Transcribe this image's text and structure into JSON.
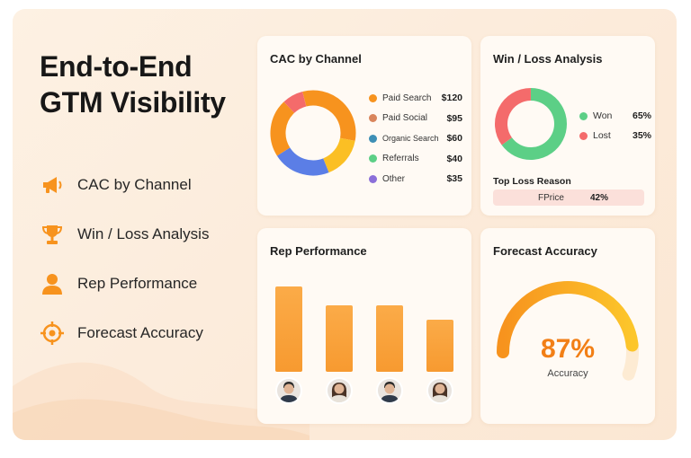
{
  "hero": {
    "title_line1": "End-to-End",
    "title_line2": "GTM Visibility"
  },
  "features": [
    {
      "label": "CAC by Channel",
      "icon": "megaphone-icon"
    },
    {
      "label": "Win / Loss Analysis",
      "icon": "trophy-icon"
    },
    {
      "label": "Rep Performance",
      "icon": "person-icon"
    },
    {
      "label": "Forecast Accuracy",
      "icon": "target-icon"
    }
  ],
  "cac": {
    "title": "CAC by Channel",
    "channels": [
      {
        "name": "Paid Search",
        "value": "$120",
        "color": "#f7931e"
      },
      {
        "name": "Paid Social",
        "value": "$95",
        "color": "#d9855c"
      },
      {
        "name": "Organic Search",
        "value": "$60",
        "color": "#3d8fb5"
      },
      {
        "name": "Referrals",
        "value": "$40",
        "color": "#5ccf86"
      },
      {
        "name": "Other",
        "value": "$35",
        "color": "#8b6fd9"
      }
    ],
    "donut_segments": [
      {
        "value": 32,
        "color": "#f7931e"
      },
      {
        "value": 16,
        "color": "#fbbf24"
      },
      {
        "value": 22,
        "color": "#5b7ee6"
      },
      {
        "value": 22,
        "color": "#f7931e"
      },
      {
        "value": 8,
        "color": "#f46b6b"
      }
    ]
  },
  "winloss": {
    "title": "Win / Loss Analysis",
    "won_label": "Won",
    "won_pct": "65%",
    "won_value": 65,
    "won_color": "#5ccf86",
    "lost_label": "Lost",
    "lost_pct": "35%",
    "lost_value": 35,
    "lost_color": "#f46b6b",
    "top_loss_title": "Top Loss Reason",
    "top_loss_name": "FPrice",
    "top_loss_pct": "42%"
  },
  "rep": {
    "title": "Rep Performance",
    "values": [
      90,
      70,
      70,
      55
    ]
  },
  "forecast": {
    "title": "Forecast Accuracy",
    "value_text": "87%",
    "value": 87,
    "label": "Accuracy"
  }
}
